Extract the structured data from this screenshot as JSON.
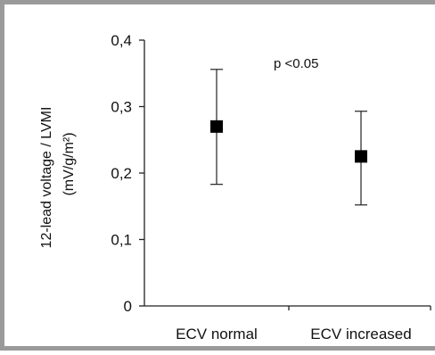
{
  "chart_data": {
    "type": "scatter",
    "categories": [
      "ECV normal",
      "ECV increased"
    ],
    "series": [
      {
        "values": [
          0.27,
          0.225
        ],
        "error_low": [
          0.183,
          0.152
        ],
        "error_high": [
          0.356,
          0.293
        ]
      }
    ],
    "ylim": [
      0,
      0.4
    ],
    "yticks": [
      0,
      0.1,
      0.2,
      0.3,
      0.4
    ],
    "ytick_labels": [
      "0",
      "0,1",
      "0,2",
      "0,3",
      "0,4"
    ],
    "ylabel_line1": "12-lead voltage / LVMI",
    "ylabel_line2": "(mV/g/m²)",
    "annotation": "p <0.05",
    "grid": false,
    "marker_color": "#000000"
  }
}
